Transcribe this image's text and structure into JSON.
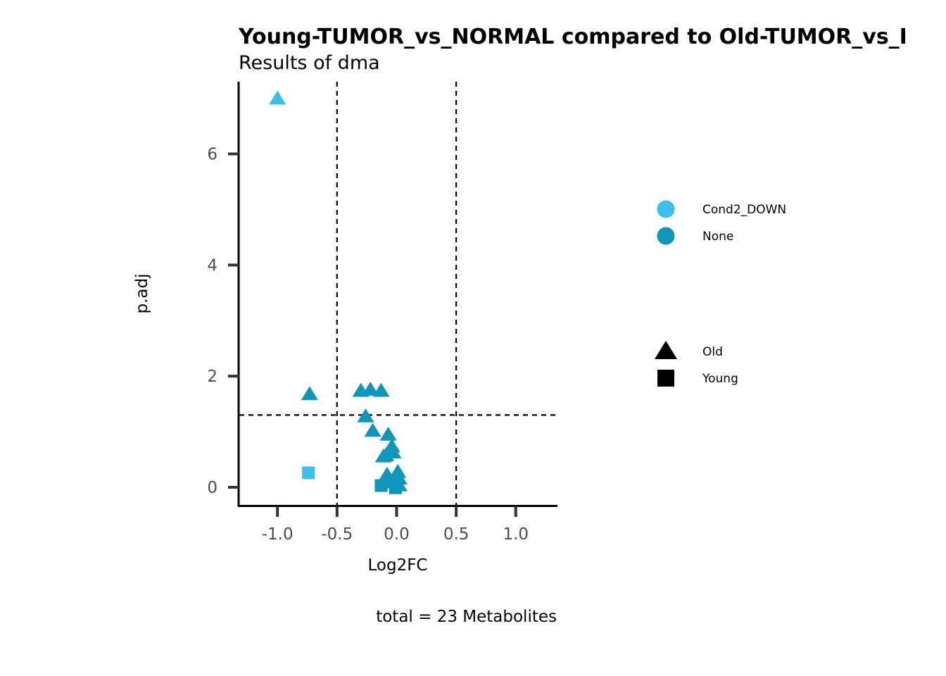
{
  "chart_data": {
    "type": "scatter",
    "title": "Young-TUMOR_vs_NORMAL compared to Old-TUMOR_vs_I",
    "subtitle": "Results of dma",
    "xlabel": "Log2FC",
    "ylabel": "p.adj",
    "caption": "total = 23 Metabolites",
    "xlim": [
      -1.32,
      1.35
    ],
    "ylim": [
      -0.33,
      7.3
    ],
    "x_ticks": [
      -1.0,
      -0.5,
      0.0,
      0.5,
      1.0
    ],
    "x_tick_labels": [
      "-1.0",
      "-0.5",
      "0.0",
      "0.5",
      "1.0"
    ],
    "y_ticks": [
      0,
      2,
      4,
      6
    ],
    "y_tick_labels": [
      "0",
      "2",
      "4",
      "6"
    ],
    "reference_lines": {
      "vertical": [
        -0.5,
        0.5
      ],
      "horizontal": [
        1.3
      ]
    },
    "grid": false,
    "legend_placement": "right",
    "color_legend": [
      {
        "key": "Cond2_DOWN",
        "label": "Cond2_DOWN",
        "color": "#3ABFEF"
      },
      {
        "key": "None",
        "label": "None",
        "color": "#0E96BB"
      }
    ],
    "shape_legend": [
      {
        "key": "Old",
        "label": "Old",
        "shape": "triangle"
      },
      {
        "key": "Young",
        "label": "Young",
        "shape": "square"
      }
    ],
    "points": [
      {
        "x": -1.0,
        "y": 7.0,
        "color": "Cond2_DOWN",
        "shape": "Old"
      },
      {
        "x": -0.74,
        "y": 0.26,
        "color": "Cond2_DOWN",
        "shape": "Young"
      },
      {
        "x": -0.73,
        "y": 1.68,
        "color": "None",
        "shape": "Old"
      },
      {
        "x": -0.3,
        "y": 1.74,
        "color": "None",
        "shape": "Old"
      },
      {
        "x": -0.22,
        "y": 1.76,
        "color": "None",
        "shape": "Old"
      },
      {
        "x": -0.13,
        "y": 1.74,
        "color": "None",
        "shape": "Old"
      },
      {
        "x": -0.26,
        "y": 1.28,
        "color": "None",
        "shape": "Old"
      },
      {
        "x": -0.2,
        "y": 1.02,
        "color": "None",
        "shape": "Old"
      },
      {
        "x": -0.07,
        "y": 0.95,
        "color": "None",
        "shape": "Old"
      },
      {
        "x": -0.04,
        "y": 0.74,
        "color": "None",
        "shape": "Old"
      },
      {
        "x": -0.03,
        "y": 0.63,
        "color": "None",
        "shape": "Old"
      },
      {
        "x": -0.09,
        "y": 0.58,
        "color": "None",
        "shape": "Old"
      },
      {
        "x": -0.11,
        "y": 0.56,
        "color": "None",
        "shape": "Old"
      },
      {
        "x": 0.01,
        "y": 0.28,
        "color": "None",
        "shape": "Old"
      },
      {
        "x": -0.08,
        "y": 0.23,
        "color": "None",
        "shape": "Old"
      },
      {
        "x": -0.1,
        "y": 0.13,
        "color": "None",
        "shape": "Old"
      },
      {
        "x": 0.02,
        "y": 0.16,
        "color": "None",
        "shape": "Old"
      },
      {
        "x": -0.03,
        "y": 0.09,
        "color": "None",
        "shape": "Old"
      },
      {
        "x": 0.01,
        "y": 0.06,
        "color": "None",
        "shape": "Old"
      },
      {
        "x": 0.02,
        "y": 0.04,
        "color": "None",
        "shape": "Old"
      },
      {
        "x": -0.13,
        "y": 0.03,
        "color": "None",
        "shape": "Young"
      },
      {
        "x": -0.01,
        "y": 0.02,
        "color": "None",
        "shape": "Young"
      },
      {
        "x": -0.01,
        "y": -0.01,
        "color": "None",
        "shape": "Young"
      }
    ]
  }
}
